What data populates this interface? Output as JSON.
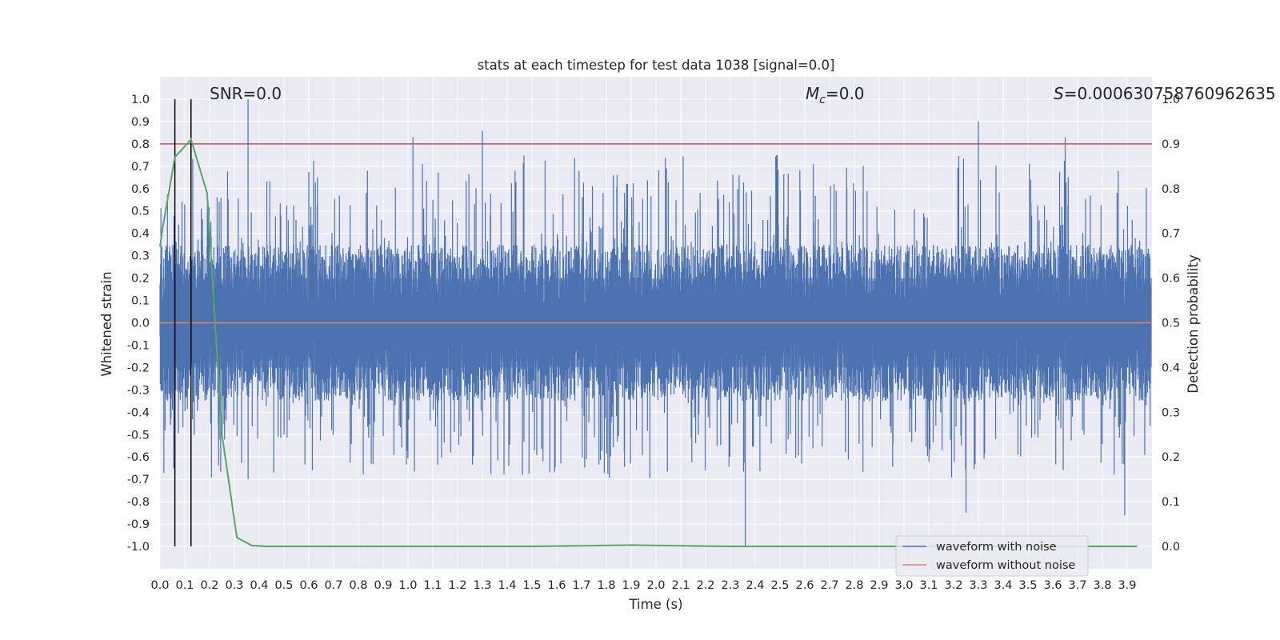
{
  "chart_data": {
    "type": "line",
    "title": "stats at each timestep for test data 1038 [signal=0.0]",
    "xlabel": "Time (s)",
    "ylabel": "Whitened strain",
    "y2label": "Detection probability",
    "xlim": [
      0.0,
      4.0
    ],
    "ylim": [
      -1.1,
      1.1
    ],
    "y2lim": [
      -0.05,
      1.05
    ],
    "grid": true,
    "legend_position": "lower right",
    "x_ticks": [
      "0.0",
      "0.1",
      "0.2",
      "0.3",
      "0.4",
      "0.5",
      "0.6",
      "0.7",
      "0.8",
      "0.9",
      "1.0",
      "1.1",
      "1.2",
      "1.3",
      "1.4",
      "1.5",
      "1.6",
      "1.7",
      "1.8",
      "1.9",
      "2.0",
      "2.1",
      "2.2",
      "2.3",
      "2.4",
      "2.5",
      "2.6",
      "2.7",
      "2.8",
      "2.9",
      "3.0",
      "3.1",
      "3.2",
      "3.3",
      "3.4",
      "3.5",
      "3.6",
      "3.7",
      "3.8",
      "3.9"
    ],
    "y_ticks": [
      "1.0",
      "0.9",
      "0.8",
      "0.7",
      "0.6",
      "0.5",
      "0.4",
      "0.3",
      "0.2",
      "0.1",
      "0.0",
      "-0.1",
      "-0.2",
      "-0.3",
      "-0.4",
      "-0.5",
      "-0.6",
      "-0.7",
      "-0.8",
      "-0.9",
      "-1.0"
    ],
    "y2_ticks": [
      "1.0",
      "0.9",
      "0.8",
      "0.7",
      "0.6",
      "0.5",
      "0.4",
      "0.3",
      "0.2",
      "0.1",
      "0.0"
    ],
    "annotations": {
      "snr": "SNR=0.0",
      "mc_symbol": "M",
      "mc_subscript": "c",
      "mc_value": "=0.0",
      "s_symbol": "S",
      "s_value": "=0.000630758760962635"
    },
    "threshold": {
      "axis": "y2",
      "value": 0.9,
      "color": "#c44e52"
    },
    "vertical_lines": [
      0.06,
      0.125
    ],
    "series": [
      {
        "name": "waveform with noise",
        "color": "#4c72b0",
        "axis": "y",
        "noise_envelope": {
          "typical_max": 0.35,
          "typical_min": -0.35,
          "peak_max": 1.0,
          "peak_min": -1.0
        },
        "peaks": [
          {
            "x": 0.355,
            "y": 1.0
          },
          {
            "x": 1.02,
            "y": 0.83
          },
          {
            "x": 1.3,
            "y": 0.86
          },
          {
            "x": 3.3,
            "y": 0.9
          },
          {
            "x": 3.65,
            "y": 0.83
          },
          {
            "x": 2.36,
            "y": -1.0
          },
          {
            "x": 3.89,
            "y": -0.86
          },
          {
            "x": 3.25,
            "y": -0.85
          }
        ]
      },
      {
        "name": "waveform without noise",
        "color": "#dd8452",
        "axis": "y",
        "constant": 0.0
      },
      {
        "name": "detection probability",
        "color": "#55a868",
        "axis": "y2",
        "x": [
          0.0,
          0.01,
          0.06,
          0.125,
          0.19,
          0.25,
          0.31,
          0.37,
          0.43,
          0.6,
          1.0,
          1.5,
          1.9,
          2.3,
          3.0,
          3.5,
          3.94
        ],
        "y": [
          0.67,
          0.71,
          0.87,
          0.91,
          0.79,
          0.25,
          0.02,
          0.002,
          0.0,
          0.0,
          0.0,
          0.0,
          0.003,
          0.0,
          0.0,
          0.0,
          0.0
        ]
      }
    ]
  }
}
